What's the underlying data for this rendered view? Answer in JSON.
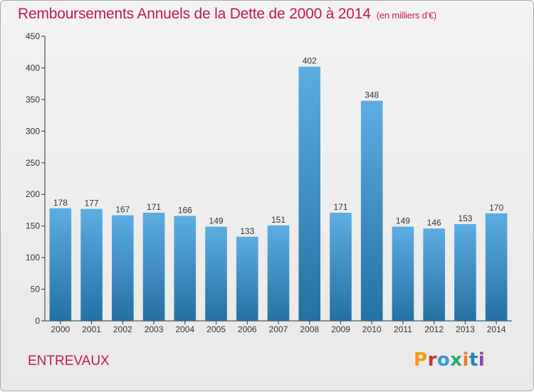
{
  "header": {
    "title": "Remboursements Annuels de la Dette de 2000 à 2014",
    "unit": "(en milliers d'€)"
  },
  "footer": {
    "commune": "ENTREVAUX",
    "logo": "Proxiti"
  },
  "colors": {
    "title": "#c2185b",
    "bar_light": "#5dade2",
    "bar_dark": "#2471a3",
    "logo_letters": [
      "#f39c12",
      "#c0392b",
      "#3498db",
      "#27ae60",
      "#e67e22",
      "#2980b9",
      "#8e44ad"
    ]
  },
  "chart_data": {
    "type": "bar",
    "title": "Remboursements Annuels de la Dette de 2000 à 2014",
    "xlabel": "",
    "ylabel": "",
    "categories": [
      "2000",
      "2001",
      "2002",
      "2003",
      "2004",
      "2005",
      "2006",
      "2007",
      "2008",
      "2009",
      "2010",
      "2011",
      "2012",
      "2013",
      "2014"
    ],
    "values": [
      178,
      177,
      167,
      171,
      166,
      149,
      133,
      151,
      402,
      171,
      348,
      149,
      146,
      153,
      170
    ],
    "ylim": [
      0,
      450
    ],
    "yticks": [
      0,
      50,
      100,
      150,
      200,
      250,
      300,
      350,
      400,
      450
    ],
    "grid": false,
    "data_labels": true
  }
}
